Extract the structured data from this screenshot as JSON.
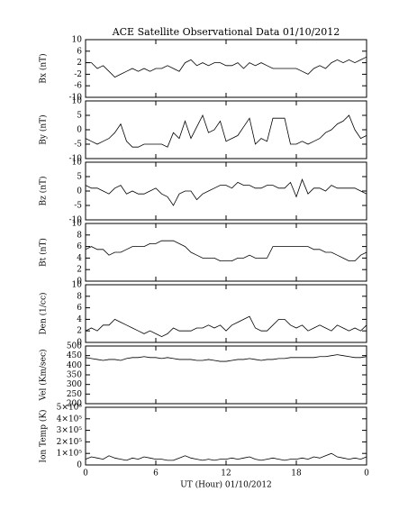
{
  "title": "ACE Satellite Observational Data   01/10/2012",
  "chart_data": [
    {
      "type": "line",
      "ylabel": "Bx (nT)",
      "color": "#000000",
      "xlim": [
        0,
        24
      ],
      "xticks": [
        0,
        6,
        12,
        18,
        {
          "value": 24,
          "label": "0"
        }
      ],
      "ylim": [
        -10,
        10
      ],
      "yticks": [
        -10,
        -6,
        -2,
        2,
        6,
        10
      ],
      "x": [
        0,
        0.5,
        1,
        1.5,
        2,
        2.5,
        3,
        3.5,
        4,
        4.5,
        5,
        5.5,
        6,
        6.5,
        7,
        7.5,
        8,
        8.5,
        9,
        9.5,
        10,
        10.5,
        11,
        11.5,
        12,
        12.5,
        13,
        13.5,
        14,
        14.5,
        15,
        15.5,
        16,
        16.5,
        17,
        17.5,
        18,
        18.5,
        19,
        19.5,
        20,
        20.5,
        21,
        21.5,
        22,
        22.5,
        23,
        23.5,
        24
      ],
      "values": [
        2,
        2,
        0,
        1,
        -1,
        -3,
        -2,
        -1,
        0,
        -1,
        0,
        -1,
        0,
        0,
        1,
        0,
        -1,
        2,
        3,
        1,
        2,
        1,
        2,
        2,
        1,
        1,
        2,
        0,
        2,
        1,
        2,
        1,
        0,
        0,
        0,
        0,
        0,
        -1,
        -2,
        0,
        1,
        0,
        2,
        3,
        2,
        3,
        2,
        3,
        4
      ]
    },
    {
      "type": "line",
      "ylabel": "By (nT)",
      "color": "#000000",
      "xlim": [
        0,
        24
      ],
      "xticks": [
        0,
        6,
        12,
        18,
        {
          "value": 24,
          "label": "0"
        }
      ],
      "ylim": [
        -10,
        10
      ],
      "yticks": [
        -10,
        -5,
        0,
        5,
        10
      ],
      "x": [
        0,
        0.5,
        1,
        1.5,
        2,
        2.5,
        3,
        3.5,
        4,
        4.5,
        5,
        5.5,
        6,
        6.5,
        7,
        7.5,
        8,
        8.5,
        9,
        9.5,
        10,
        10.5,
        11,
        11.5,
        12,
        12.5,
        13,
        13.5,
        14,
        14.5,
        15,
        15.5,
        16,
        16.5,
        17,
        17.5,
        18,
        18.5,
        19,
        19.5,
        20,
        20.5,
        21,
        21.5,
        22,
        22.5,
        23,
        23.5,
        24
      ],
      "values": [
        -3,
        -4,
        -5,
        -4,
        -3,
        -1,
        2,
        -4,
        -6,
        -6,
        -5,
        -5,
        -5,
        -5,
        -6,
        -1,
        -3,
        3,
        -3,
        1,
        5,
        -1,
        0,
        3,
        -4,
        -3,
        -2,
        1,
        4,
        -5,
        -3,
        -4,
        4,
        4,
        4,
        -5,
        -5,
        -4,
        -5,
        -4,
        -3,
        -1,
        0,
        2,
        3,
        5,
        0,
        -3,
        -2
      ]
    },
    {
      "type": "line",
      "ylabel": "Bz (nT)",
      "color": "#000000",
      "xlim": [
        0,
        24
      ],
      "xticks": [
        0,
        6,
        12,
        18,
        {
          "value": 24,
          "label": "0"
        }
      ],
      "ylim": [
        -10,
        10
      ],
      "yticks": [
        -10,
        -5,
        0,
        5,
        10
      ],
      "x": [
        0,
        0.5,
        1,
        1.5,
        2,
        2.5,
        3,
        3.5,
        4,
        4.5,
        5,
        5.5,
        6,
        6.5,
        7,
        7.5,
        8,
        8.5,
        9,
        9.5,
        10,
        10.5,
        11,
        11.5,
        12,
        12.5,
        13,
        13.5,
        14,
        14.5,
        15,
        15.5,
        16,
        16.5,
        17,
        17.5,
        18,
        18.5,
        19,
        19.5,
        20,
        20.5,
        21,
        21.5,
        22,
        22.5,
        23,
        23.5,
        24
      ],
      "values": [
        2,
        1,
        1,
        0,
        -1,
        1,
        2,
        -1,
        0,
        -1,
        -1,
        0,
        1,
        -1,
        -2,
        -5,
        -1,
        0,
        0,
        -3,
        -1,
        0,
        1,
        2,
        2,
        1,
        3,
        2,
        2,
        1,
        1,
        2,
        2,
        1,
        1,
        3,
        -2,
        4,
        -1,
        1,
        1,
        0,
        2,
        1,
        1,
        1,
        1,
        0,
        -1
      ]
    },
    {
      "type": "line",
      "ylabel": "Bt (nT)",
      "color": "#000000",
      "xlim": [
        0,
        24
      ],
      "xticks": [
        0,
        6,
        12,
        18,
        {
          "value": 24,
          "label": "0"
        }
      ],
      "ylim": [
        0,
        10
      ],
      "yticks": [
        0,
        2,
        4,
        6,
        8,
        10
      ],
      "x": [
        0,
        0.5,
        1,
        1.5,
        2,
        2.5,
        3,
        3.5,
        4,
        4.5,
        5,
        5.5,
        6,
        6.5,
        7,
        7.5,
        8,
        8.5,
        9,
        9.5,
        10,
        10.5,
        11,
        11.5,
        12,
        12.5,
        13,
        13.5,
        14,
        14.5,
        15,
        15.5,
        16,
        16.5,
        17,
        17.5,
        18,
        18.5,
        19,
        19.5,
        20,
        20.5,
        21,
        21.5,
        22,
        22.5,
        23,
        23.5,
        24
      ],
      "values": [
        5.5,
        6,
        5.5,
        5.5,
        4.5,
        5,
        5,
        5.5,
        6,
        6,
        6,
        6.5,
        6.5,
        7,
        7,
        7,
        6.5,
        6,
        5,
        4.5,
        4,
        4,
        4,
        3.5,
        3.5,
        3.5,
        4,
        4,
        4.5,
        4,
        4,
        4,
        6,
        6,
        6,
        6,
        6,
        6,
        6,
        5.5,
        5.5,
        5,
        5,
        4.5,
        4,
        3.5,
        3.5,
        4.5,
        5
      ]
    },
    {
      "type": "line",
      "ylabel": "Den (1/cc)",
      "color": "#000000",
      "xlim": [
        0,
        24
      ],
      "xticks": [
        0,
        6,
        12,
        18,
        {
          "value": 24,
          "label": "0"
        }
      ],
      "ylim": [
        0,
        10
      ],
      "yticks": [
        0,
        2,
        4,
        6,
        8,
        10
      ],
      "x": [
        0,
        0.5,
        1,
        1.5,
        2,
        2.5,
        3,
        3.5,
        4,
        4.5,
        5,
        5.5,
        6,
        6.5,
        7,
        7.5,
        8,
        8.5,
        9,
        9.5,
        10,
        10.5,
        11,
        11.5,
        12,
        12.5,
        13,
        13.5,
        14,
        14.5,
        15,
        15.5,
        16,
        16.5,
        17,
        17.5,
        18,
        18.5,
        19,
        19.5,
        20,
        20.5,
        21,
        21.5,
        22,
        22.5,
        23,
        23.5,
        24
      ],
      "values": [
        2,
        2.5,
        2,
        3,
        3,
        4,
        3.5,
        3,
        2.5,
        2,
        1.5,
        2,
        1.5,
        1,
        1.5,
        2.5,
        2,
        2,
        2,
        2.5,
        2.5,
        3,
        2.5,
        3,
        2,
        3,
        3.5,
        4,
        4.5,
        2.5,
        2,
        2,
        3,
        4,
        4,
        3,
        2.5,
        3,
        2,
        2.5,
        3,
        2.5,
        2,
        3,
        2.5,
        2,
        2.5,
        2,
        3
      ]
    },
    {
      "type": "line",
      "ylabel": "Vel (Km/sec)",
      "color": "#000000",
      "xlim": [
        0,
        24
      ],
      "xticks": [
        0,
        6,
        12,
        18,
        {
          "value": 24,
          "label": "0"
        }
      ],
      "ylim": [
        200,
        500
      ],
      "yticks": [
        200,
        250,
        300,
        350,
        400,
        450,
        500
      ],
      "x": [
        0,
        0.5,
        1,
        1.5,
        2,
        2.5,
        3,
        3.5,
        4,
        4.5,
        5,
        5.5,
        6,
        6.5,
        7,
        7.5,
        8,
        8.5,
        9,
        9.5,
        10,
        10.5,
        11,
        11.5,
        12,
        12.5,
        13,
        13.5,
        14,
        14.5,
        15,
        15.5,
        16,
        16.5,
        17,
        17.5,
        18,
        18.5,
        19,
        19.5,
        20,
        20.5,
        21,
        21.5,
        22,
        22.5,
        23,
        23.5,
        24
      ],
      "values": [
        440,
        435,
        430,
        425,
        430,
        430,
        425,
        435,
        440,
        440,
        445,
        440,
        440,
        435,
        440,
        435,
        430,
        430,
        430,
        425,
        425,
        430,
        425,
        420,
        420,
        425,
        430,
        430,
        435,
        430,
        425,
        430,
        430,
        435,
        435,
        440,
        440,
        440,
        440,
        440,
        445,
        445,
        450,
        455,
        450,
        445,
        440,
        440,
        445
      ]
    },
    {
      "type": "line",
      "ylabel": "Ion Temp (K)",
      "xlabel": "UT (Hour)  01/10/2012",
      "color": "#000000",
      "xlim": [
        0,
        24
      ],
      "xticks": [
        0,
        6,
        12,
        18,
        {
          "value": 24,
          "label": "0"
        }
      ],
      "ylim": [
        0,
        500000
      ],
      "yticks": [
        0,
        {
          "value": 100000,
          "label": "1×10⁵"
        },
        {
          "value": 200000,
          "label": "2×10⁵"
        },
        {
          "value": 300000,
          "label": "3×10⁵"
        },
        {
          "value": 400000,
          "label": "4×10⁵"
        },
        {
          "value": 500000,
          "label": "5×10⁵"
        }
      ],
      "x": [
        0,
        0.5,
        1,
        1.5,
        2,
        2.5,
        3,
        3.5,
        4,
        4.5,
        5,
        5.5,
        6,
        6.5,
        7,
        7.5,
        8,
        8.5,
        9,
        9.5,
        10,
        10.5,
        11,
        11.5,
        12,
        12.5,
        13,
        13.5,
        14,
        14.5,
        15,
        15.5,
        16,
        16.5,
        17,
        17.5,
        18,
        18.5,
        19,
        19.5,
        20,
        20.5,
        21,
        21.5,
        22,
        22.5,
        23,
        23.5,
        24
      ],
      "values": [
        50000,
        70000,
        60000,
        50000,
        80000,
        60000,
        50000,
        40000,
        60000,
        50000,
        70000,
        60000,
        50000,
        50000,
        40000,
        40000,
        60000,
        80000,
        60000,
        50000,
        40000,
        50000,
        40000,
        50000,
        50000,
        60000,
        50000,
        60000,
        70000,
        50000,
        40000,
        50000,
        60000,
        50000,
        40000,
        50000,
        50000,
        60000,
        50000,
        70000,
        60000,
        80000,
        100000,
        70000,
        60000,
        50000,
        60000,
        50000,
        70000
      ]
    }
  ]
}
